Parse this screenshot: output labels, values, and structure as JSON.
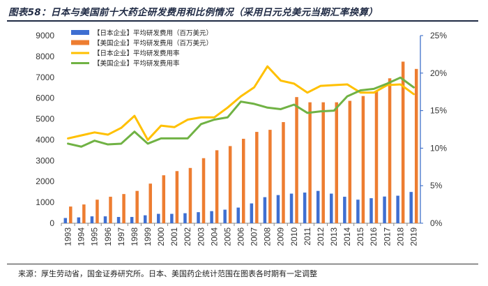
{
  "title": "图表58：日本与美国前十大药企研发费用和比例情况（采用日元兑美元当期汇率换算）",
  "source": "来源：厚生劳动省，国金证券研究所。日本、美国药企统计范围在图表各时期有一定调整",
  "chart_data": {
    "type": "bar+line",
    "categories": [
      "1993",
      "1994",
      "1995",
      "1996",
      "1997",
      "1998",
      "1999",
      "2000",
      "2001",
      "2002",
      "2003",
      "2004",
      "2005",
      "2006",
      "2007",
      "2008",
      "2009",
      "2010",
      "2011",
      "2012",
      "2013",
      "2014",
      "2015",
      "2016",
      "2017",
      "2018",
      "2019"
    ],
    "left_axis": {
      "ticks": [
        "0",
        "1000",
        "2000",
        "3000",
        "4000",
        "5000",
        "6000",
        "7000",
        "8000",
        "9000"
      ],
      "ylim": [
        0,
        9000
      ]
    },
    "right_axis": {
      "ticks": [
        "0%",
        "5%",
        "10%",
        "15%",
        "20%",
        "25%"
      ],
      "ylim": [
        0,
        25
      ]
    },
    "series": [
      {
        "name": "【日本企业】平均研发费用（百万美元）",
        "type": "bar",
        "axis": "left",
        "color": "#3f6fd1",
        "values": [
          250,
          280,
          330,
          330,
          300,
          300,
          380,
          450,
          450,
          480,
          530,
          580,
          650,
          750,
          950,
          1250,
          1350,
          1420,
          1470,
          1550,
          1420,
          1270,
          1130,
          1200,
          1280,
          1320,
          1500
        ]
      },
      {
        "name": "【美国企业】平均研发费用（百万美元）",
        "type": "bar",
        "axis": "left",
        "color": "#ed7d31",
        "values": [
          800,
          900,
          1130,
          1270,
          1400,
          1550,
          1900,
          2300,
          2500,
          2650,
          3120,
          3500,
          3700,
          4050,
          4380,
          4480,
          4850,
          6050,
          5800,
          5800,
          5800,
          5870,
          6100,
          6350,
          6950,
          7750,
          7400
        ]
      },
      {
        "name": "【日本企业】平均研发费用率",
        "type": "line",
        "axis": "right",
        "color": "#ffc000",
        "values": [
          11.3,
          11.7,
          12.1,
          11.8,
          12.7,
          14.3,
          11.1,
          13.0,
          12.8,
          13.8,
          14.1,
          14.1,
          15.4,
          16.9,
          18.1,
          20.9,
          19.0,
          18.6,
          17.4,
          18.3,
          18.4,
          18.5,
          17.4,
          17.4,
          18.4,
          18.5,
          17.2
        ]
      },
      {
        "name": "【美国企业】平均研发费用率",
        "type": "line",
        "axis": "right",
        "color": "#70b244",
        "values": [
          10.6,
          10.2,
          11.0,
          10.5,
          10.6,
          12.2,
          10.6,
          11.3,
          11.3,
          11.3,
          13.2,
          13.8,
          14.1,
          16.2,
          15.9,
          15.4,
          15.2,
          15.8,
          14.7,
          14.9,
          15.0,
          16.9,
          17.7,
          17.9,
          18.6,
          19.4,
          18.1
        ]
      }
    ],
    "legend_position": "top-left",
    "grid": false
  }
}
